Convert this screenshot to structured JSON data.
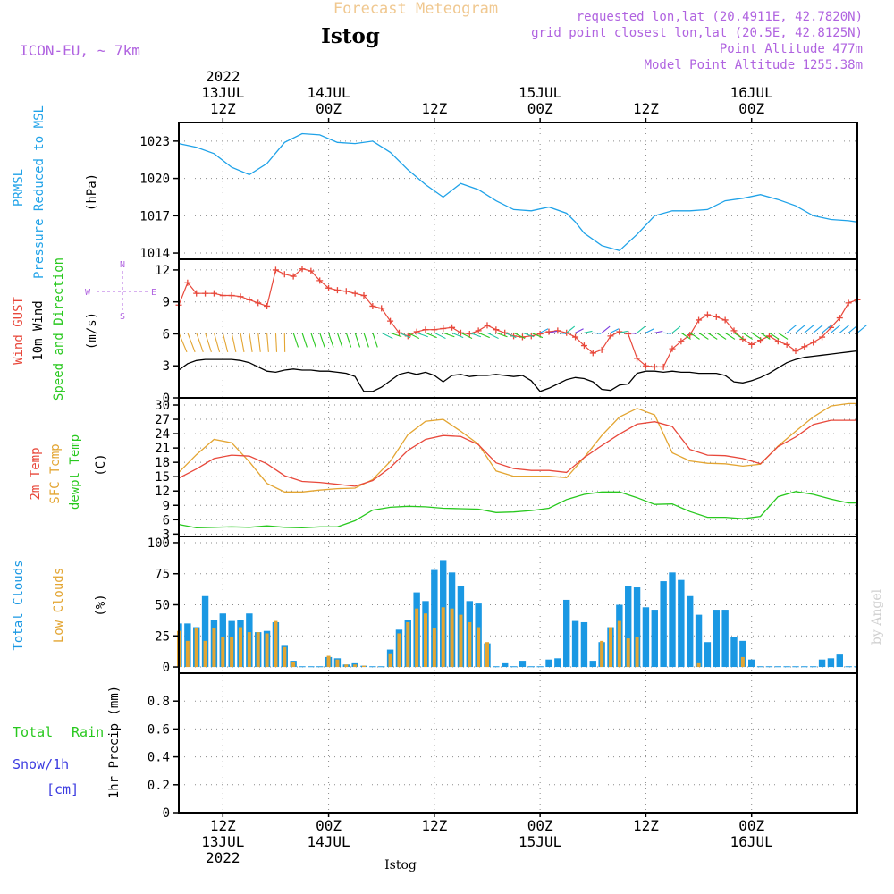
{
  "header": {
    "top_title": "Forecast Meteogram",
    "station": "Istog",
    "model": "ICON-EU, ~ 7km",
    "requested": "requested lon,lat (20.4911E, 42.7820N)",
    "grid_point": "grid point closest lon,lat (20.5E, 42.8125N)",
    "point_altitude": "Point Altitude 477m",
    "model_altitude": "Model Point Altitude 1255.38m",
    "bottom_station": "Istog",
    "signature": "by Angel"
  },
  "time_axis": {
    "top": [
      {
        "t": 12,
        "lines": [
          "2022",
          "13JUL",
          "12Z"
        ]
      },
      {
        "t": 24,
        "lines": [
          "14JUL",
          "00Z"
        ]
      },
      {
        "t": 36,
        "lines": [
          "12Z"
        ]
      },
      {
        "t": 48,
        "lines": [
          "15JUL",
          "00Z"
        ]
      },
      {
        "t": 60,
        "lines": [
          "12Z"
        ]
      },
      {
        "t": 72,
        "lines": [
          "16JUL",
          "00Z"
        ]
      }
    ],
    "bottom": [
      {
        "t": 12,
        "lines": [
          "12Z",
          "13JUL",
          "2022"
        ]
      },
      {
        "t": 24,
        "lines": [
          "00Z",
          "14JUL"
        ]
      },
      {
        "t": 36,
        "lines": [
          "12Z"
        ]
      },
      {
        "t": 48,
        "lines": [
          "00Z",
          "15JUL"
        ]
      },
      {
        "t": 60,
        "lines": [
          "12Z"
        ]
      },
      {
        "t": 72,
        "lines": [
          "00Z",
          "16JUL"
        ]
      }
    ]
  },
  "colors": {
    "pressure": "#1fa2e8",
    "gust": "#e8483b",
    "wind": "#000000",
    "temp2m": "#e8483b",
    "sfc": "#e3a532",
    "dew": "#28c81e",
    "total_clouds": "#1a98e3",
    "low_clouds": "#e3a532",
    "rain": "#28c81e",
    "snow": "#3c3ce0",
    "label_purple": "#b063e0",
    "title_faint": "#f0c890"
  },
  "panel_labels": {
    "pressure": {
      "name": "PRMSL",
      "desc": "Pressure Reduced to MSL",
      "unit": "(hPa)"
    },
    "wind": {
      "gust": "Wind GUST",
      "wind": "10m Wind",
      "speed": "Speed and Direction",
      "unit": "(m/s)",
      "compass_n": "N",
      "compass_s": "S",
      "compass_w": "W",
      "compass_e": "E"
    },
    "temp": {
      "t2m": "2m Temp",
      "sfc": "SFC Temp",
      "dew": "dewpt Temp",
      "unit": "(C)"
    },
    "clouds": {
      "total": "Total Clouds",
      "low": "Low Clouds",
      "unit": "(%)"
    },
    "precip": {
      "total": "Total",
      "rain": "Rain",
      "snow": "Snow/1h",
      "cm": "[cm]",
      "unit": "1hr Precip (mm)"
    }
  },
  "chart_data": [
    {
      "type": "line",
      "title": "PRMSL Pressure Reduced to MSL",
      "ylabel": "hPa",
      "ylim": [
        1013.5,
        1024.5
      ],
      "yticks": [
        1014,
        1017,
        1020,
        1023
      ],
      "time_range": [
        7,
        84
      ],
      "x": [
        7,
        9,
        11,
        13,
        15,
        17,
        19,
        21,
        23,
        25,
        27,
        29,
        31,
        33,
        35,
        37,
        39,
        41,
        43,
        45,
        47,
        49,
        51,
        52,
        53,
        55,
        57,
        59,
        61,
        63,
        65,
        67,
        69,
        71,
        73,
        75,
        77,
        79,
        81,
        83,
        84
      ],
      "series": [
        {
          "name": "PRMSL",
          "values": [
            1022.8,
            1022.5,
            1022.0,
            1020.9,
            1020.3,
            1021.2,
            1022.9,
            1023.6,
            1023.5,
            1022.9,
            1022.8,
            1023.0,
            1022.1,
            1020.7,
            1019.5,
            1018.5,
            1019.6,
            1019.1,
            1018.2,
            1017.5,
            1017.4,
            1017.7,
            1017.2,
            1016.5,
            1015.6,
            1014.6,
            1014.2,
            1015.5,
            1017.0,
            1017.4,
            1017.4,
            1017.5,
            1018.2,
            1018.4,
            1018.7,
            1018.3,
            1017.8,
            1017.0,
            1016.7,
            1016.6,
            1016.5
          ]
        }
      ]
    },
    {
      "type": "line",
      "title": "Wind GUST / 10m Wind Speed and Direction",
      "ylabel": "m/s",
      "ylim": [
        0,
        13
      ],
      "yticks": [
        0,
        3,
        6,
        9,
        12
      ],
      "time_range": [
        7,
        84
      ],
      "x": [
        7,
        8,
        9,
        10,
        11,
        12,
        13,
        14,
        15,
        16,
        17,
        18,
        19,
        20,
        21,
        22,
        23,
        24,
        25,
        26,
        27,
        28,
        29,
        30,
        31,
        32,
        33,
        34,
        35,
        36,
        37,
        38,
        39,
        40,
        41,
        42,
        43,
        44,
        45,
        46,
        47,
        48,
        49,
        50,
        51,
        52,
        53,
        54,
        55,
        56,
        57,
        58,
        59,
        60,
        61,
        62,
        63,
        64,
        65,
        66,
        67,
        68,
        69,
        70,
        71,
        72,
        73,
        74,
        75,
        76,
        77,
        78,
        79,
        80,
        81,
        82,
        83,
        84
      ],
      "series": [
        {
          "name": "Wind GUST",
          "values": [
            8.7,
            10.8,
            9.8,
            9.8,
            9.8,
            9.6,
            9.6,
            9.5,
            9.2,
            8.9,
            8.6,
            12.0,
            11.6,
            11.4,
            12.1,
            11.9,
            11.0,
            10.3,
            10.1,
            10.0,
            9.8,
            9.6,
            8.6,
            8.4,
            7.2,
            6.1,
            5.8,
            6.2,
            6.4,
            6.4,
            6.5,
            6.6,
            6.1,
            6.0,
            6.3,
            6.8,
            6.4,
            6.1,
            5.8,
            5.7,
            5.8,
            6.0,
            6.2,
            6.3,
            6.1,
            5.7,
            4.9,
            4.2,
            4.5,
            5.8,
            6.2,
            6.0,
            3.7,
            3.0,
            2.9,
            2.9,
            4.6,
            5.3,
            5.9,
            7.3,
            7.8,
            7.6,
            7.3,
            6.3,
            5.5,
            5.0,
            5.4,
            5.8,
            5.3,
            5.0,
            4.4,
            4.8,
            5.2,
            5.7,
            6.6,
            7.5,
            8.9,
            9.2
          ]
        },
        {
          "name": "10m Wind",
          "values": [
            2.6,
            3.2,
            3.5,
            3.6,
            3.6,
            3.6,
            3.6,
            3.5,
            3.3,
            2.9,
            2.5,
            2.4,
            2.6,
            2.7,
            2.6,
            2.6,
            2.5,
            2.5,
            2.4,
            2.3,
            2.0,
            0.6,
            0.6,
            1.0,
            1.6,
            2.2,
            2.4,
            2.2,
            2.4,
            2.1,
            1.5,
            2.1,
            2.2,
            2.0,
            2.1,
            2.1,
            2.2,
            2.1,
            2.0,
            2.1,
            1.6,
            0.6,
            0.9,
            1.3,
            1.7,
            1.9,
            1.8,
            1.5,
            0.8,
            0.7,
            1.2,
            1.3,
            2.3,
            2.5,
            2.5,
            2.4,
            2.5,
            2.4,
            2.4,
            2.3,
            2.3,
            2.3,
            2.1,
            1.5,
            1.4,
            1.6,
            1.9,
            2.3,
            2.8,
            3.3,
            3.6,
            3.8,
            3.9,
            4.0,
            4.1,
            4.2,
            4.3,
            4.4
          ]
        }
      ]
    },
    {
      "type": "line",
      "title": "2m Temp / SFC Temp / dewpt Temp",
      "ylabel": "C",
      "ylim": [
        2.5,
        31.5
      ],
      "yticks": [
        3,
        6,
        9,
        12,
        15,
        18,
        21,
        24,
        27,
        30
      ],
      "time_range": [
        7,
        84
      ],
      "x": [
        7,
        9,
        11,
        13,
        15,
        17,
        19,
        21,
        23,
        25,
        27,
        29,
        31,
        33,
        35,
        37,
        39,
        41,
        43,
        45,
        47,
        49,
        51,
        53,
        55,
        57,
        59,
        61,
        63,
        65,
        67,
        69,
        71,
        73,
        75,
        77,
        79,
        81,
        83,
        84
      ],
      "series": [
        {
          "name": "2m Temp",
          "values": [
            14.7,
            16.6,
            18.8,
            19.5,
            19.3,
            17.7,
            15.2,
            14.0,
            13.8,
            13.4,
            13.0,
            14.2,
            16.9,
            20.5,
            22.8,
            23.6,
            23.4,
            21.7,
            17.9,
            16.7,
            16.3,
            16.3,
            15.9,
            19.0,
            21.5,
            23.9,
            26.0,
            26.5,
            25.5,
            20.7,
            19.5,
            19.4,
            18.8,
            17.7,
            21.3,
            23.3,
            25.9,
            26.8,
            26.8,
            26.8
          ]
        },
        {
          "name": "SFC Temp",
          "values": [
            15.9,
            19.6,
            22.8,
            22.1,
            18.1,
            13.6,
            11.8,
            11.8,
            12.2,
            12.5,
            12.6,
            14.4,
            18.2,
            23.8,
            26.6,
            27.0,
            24.5,
            21.8,
            16.2,
            15.1,
            15.1,
            15.1,
            14.8,
            19.0,
            23.6,
            27.5,
            29.3,
            27.9,
            20.0,
            18.3,
            17.8,
            17.7,
            17.2,
            17.6,
            21.4,
            24.5,
            27.5,
            29.8,
            30.3,
            30.3
          ]
        },
        {
          "name": "dewpt Temp",
          "values": [
            5.0,
            4.3,
            4.4,
            4.5,
            4.4,
            4.7,
            4.4,
            4.3,
            4.5,
            4.5,
            5.8,
            8.0,
            8.6,
            8.8,
            8.7,
            8.4,
            8.3,
            8.2,
            7.5,
            7.6,
            7.9,
            8.4,
            10.2,
            11.3,
            11.8,
            11.8,
            10.6,
            9.2,
            9.3,
            7.7,
            6.5,
            6.5,
            6.2,
            6.7,
            10.8,
            11.9,
            11.3,
            10.3,
            9.5,
            9.5
          ]
        }
      ]
    },
    {
      "type": "bar",
      "title": "Total Clouds / Low Clouds",
      "ylabel": "%",
      "ylim": [
        -5,
        105
      ],
      "yticks": [
        0,
        25,
        50,
        75,
        100
      ],
      "time_range": [
        7,
        84
      ],
      "x": [
        7,
        8,
        9,
        10,
        11,
        12,
        13,
        14,
        15,
        16,
        17,
        18,
        19,
        20,
        21,
        22,
        23,
        24,
        25,
        26,
        27,
        28,
        29,
        30,
        31,
        32,
        33,
        34,
        35,
        36,
        37,
        38,
        39,
        40,
        41,
        42,
        43,
        44,
        45,
        46,
        47,
        48,
        49,
        50,
        51,
        52,
        53,
        54,
        55,
        56,
        57,
        58,
        59,
        60,
        61,
        62,
        63,
        64,
        65,
        66,
        67,
        68,
        69,
        70,
        71,
        72,
        73,
        74,
        75,
        76,
        77,
        78,
        79,
        80,
        81,
        82,
        83,
        84
      ],
      "series": [
        {
          "name": "Total Clouds",
          "values": [
            35,
            35,
            32,
            57,
            38,
            43,
            37,
            38,
            43,
            28,
            29,
            36,
            17,
            5,
            0,
            0,
            0,
            8,
            7,
            2,
            3,
            1,
            0,
            0,
            14,
            30,
            38,
            60,
            53,
            78,
            86,
            76,
            65,
            53,
            51,
            19,
            0,
            3,
            0,
            5,
            0,
            0,
            6,
            7,
            54,
            37,
            36,
            5,
            20,
            32,
            50,
            65,
            64,
            48,
            46,
            69,
            76,
            70,
            57,
            42,
            20,
            46,
            46,
            24,
            21,
            6,
            0,
            0,
            0,
            0,
            0,
            0,
            0,
            6,
            7,
            10,
            0,
            0
          ]
        },
        {
          "name": "Low Clouds",
          "values": [
            29,
            21,
            31,
            21,
            31,
            24,
            24,
            32,
            28,
            28,
            27,
            37,
            16,
            4,
            0,
            0,
            0,
            9,
            6,
            2,
            2,
            1,
            0,
            0,
            11,
            27,
            36,
            47,
            43,
            31,
            48,
            47,
            42,
            36,
            32,
            20,
            0,
            0,
            0,
            0,
            0,
            0,
            0,
            0,
            0,
            0,
            0,
            0,
            21,
            32,
            37,
            23,
            24,
            0,
            0,
            0,
            0,
            0,
            0,
            3,
            0,
            0,
            0,
            0,
            8,
            0,
            0,
            0,
            0,
            0,
            0,
            0,
            0,
            0,
            0,
            0,
            0,
            0
          ]
        }
      ]
    },
    {
      "type": "bar",
      "title": "Total Rain / Snow 1hr Precip",
      "ylabel": "1hr Precip (mm)",
      "ylim": [
        0,
        1
      ],
      "yticks": [
        0,
        0.2,
        0.4,
        0.6,
        0.8
      ],
      "time_range": [
        7,
        84
      ],
      "series": [
        {
          "name": "Total Rain",
          "values": []
        },
        {
          "name": "Snow/1h [cm]",
          "values": []
        }
      ]
    }
  ]
}
